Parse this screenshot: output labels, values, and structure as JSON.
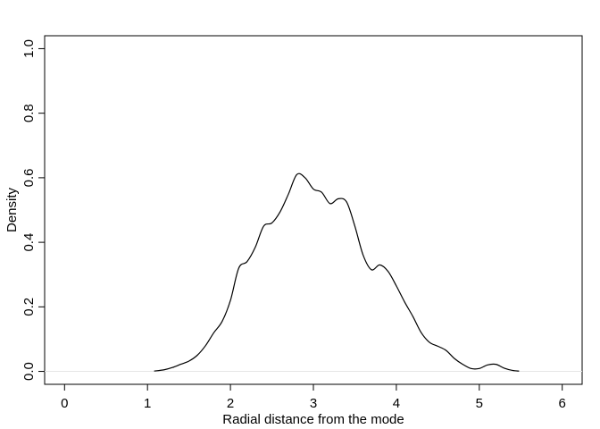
{
  "chart_data": {
    "type": "line",
    "title": "",
    "xlabel": "Radial distance from the mode",
    "ylabel": "Density",
    "xlim": [
      -0.24,
      6.24
    ],
    "ylim": [
      -0.04,
      1.04
    ],
    "xticks": [
      0,
      1,
      2,
      3,
      4,
      5,
      6
    ],
    "xtick_labels": [
      "0",
      "1",
      "2",
      "3",
      "4",
      "5",
      "6"
    ],
    "yticks": [
      0.0,
      0.2,
      0.4,
      0.6,
      0.8,
      1.0
    ],
    "ytick_labels": [
      "0.0",
      "0.2",
      "0.4",
      "0.6",
      "0.8",
      "1.0"
    ],
    "baseline": 0,
    "grid": false,
    "legend": "none",
    "series": [
      {
        "name": "density",
        "x": [
          1.08,
          1.2,
          1.3,
          1.4,
          1.5,
          1.6,
          1.7,
          1.8,
          1.9,
          2.0,
          2.1,
          2.2,
          2.3,
          2.4,
          2.5,
          2.6,
          2.7,
          2.8,
          2.9,
          3.0,
          3.1,
          3.2,
          3.3,
          3.4,
          3.5,
          3.6,
          3.7,
          3.8,
          3.9,
          4.0,
          4.1,
          4.2,
          4.3,
          4.4,
          4.5,
          4.6,
          4.7,
          4.8,
          4.9,
          5.0,
          5.1,
          5.2,
          5.3,
          5.4,
          5.48
        ],
        "y": [
          0.001,
          0.005,
          0.012,
          0.022,
          0.032,
          0.05,
          0.08,
          0.12,
          0.155,
          0.22,
          0.32,
          0.34,
          0.385,
          0.45,
          0.46,
          0.495,
          0.55,
          0.61,
          0.6,
          0.565,
          0.555,
          0.52,
          0.535,
          0.525,
          0.45,
          0.36,
          0.315,
          0.33,
          0.31,
          0.265,
          0.215,
          0.17,
          0.12,
          0.09,
          0.078,
          0.065,
          0.04,
          0.022,
          0.009,
          0.009,
          0.02,
          0.022,
          0.01,
          0.003,
          0.001
        ]
      }
    ]
  }
}
